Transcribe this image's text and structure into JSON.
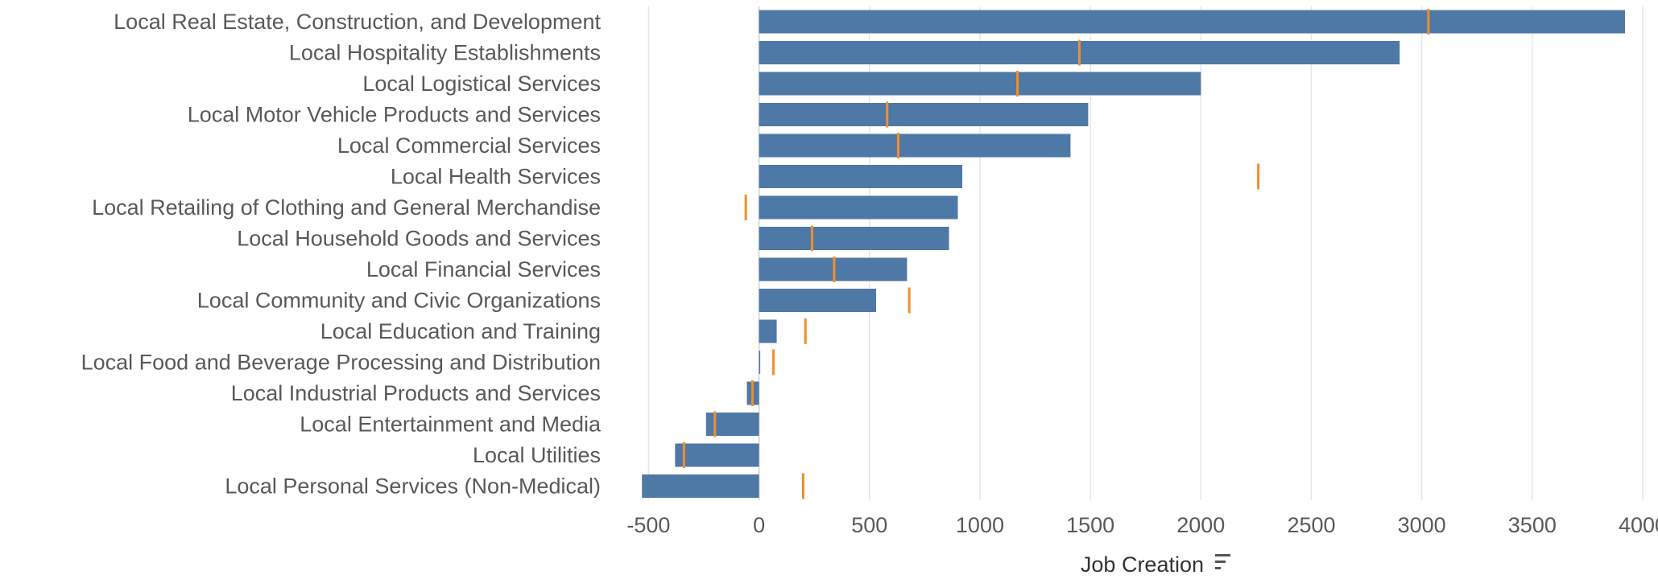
{
  "chart_data": {
    "type": "bar",
    "orientation": "horizontal",
    "xlabel": "Job Creation",
    "xlim": [
      -600,
      4000
    ],
    "xticks": [
      -500,
      0,
      500,
      1000,
      1500,
      2000,
      2500,
      3000,
      3500,
      4000
    ],
    "grid": true,
    "sort_icon": "sort-descending-icon",
    "colors": {
      "bar": "#4e79a7",
      "reference": "#f28e2b"
    },
    "categories": [
      "Local Real Estate, Construction, and Development",
      "Local Hospitality Establishments",
      "Local Logistical Services",
      "Local Motor Vehicle Products and Services",
      "Local Commercial Services",
      "Local Health Services",
      "Local Retailing of Clothing and General Merchandise",
      "Local Household Goods and Services",
      "Local Financial Services",
      "Local Community and Civic Organizations",
      "Local Education and Training",
      "Local Food and Beverage Processing and Distribution",
      "Local Industrial Products and Services",
      "Local Entertainment and Media",
      "Local Utilities",
      "Local Personal Services (Non-Medical)"
    ],
    "series": [
      {
        "values": [
          3920,
          2900,
          2000,
          1490,
          1410,
          920,
          900,
          860,
          670,
          530,
          80,
          5,
          -55,
          -240,
          -380,
          -530
        ]
      },
      {
        "values": [
          3030,
          1450,
          1170,
          580,
          630,
          2260,
          -60,
          240,
          340,
          680,
          210,
          65,
          -30,
          -200,
          -340,
          200
        ]
      }
    ]
  }
}
